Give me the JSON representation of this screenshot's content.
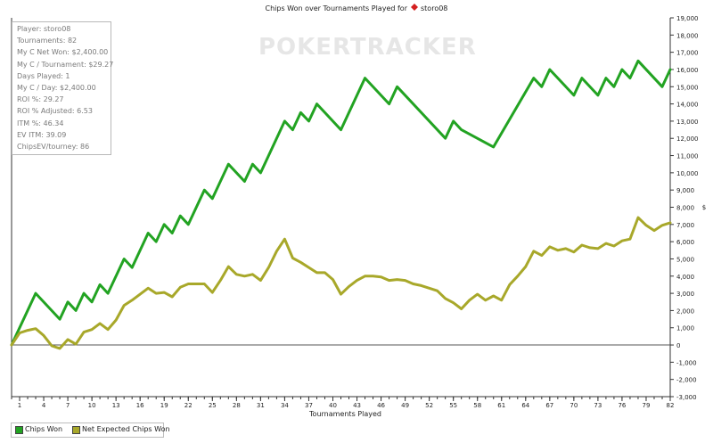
{
  "chart_data": {
    "type": "line",
    "title": "Chips Won over Tournaments Played for",
    "player_name": "storo08",
    "xlabel": "Tournaments Played",
    "ylabel": "$",
    "xlim": [
      0,
      82
    ],
    "ylim": [
      -3000,
      19000
    ],
    "x_ticks": [
      1,
      4,
      7,
      10,
      13,
      16,
      19,
      22,
      25,
      28,
      31,
      34,
      37,
      40,
      43,
      46,
      49,
      52,
      55,
      58,
      61,
      64,
      67,
      70,
      73,
      76,
      79,
      82
    ],
    "y_ticks": [
      -3000,
      -2000,
      -1000,
      0,
      1000,
      2000,
      3000,
      4000,
      5000,
      6000,
      7000,
      8000,
      9000,
      10000,
      11000,
      12000,
      13000,
      14000,
      15000,
      16000,
      17000,
      18000,
      19000
    ],
    "y_tick_labels": [
      "-3,000",
      "-2,000",
      "-1,000",
      "0",
      "1,000",
      "2,000",
      "3,000",
      "4,000",
      "5,000",
      "6,000",
      "7,000",
      "8,000",
      "9,000",
      "10,000",
      "11,000",
      "12,000",
      "13,000",
      "14,000",
      "15,000",
      "16,000",
      "17,000",
      "18,000",
      "19,000"
    ],
    "grid": false,
    "legend_position": "bottom-left",
    "series": [
      {
        "name": "Chips Won",
        "color": "#22a322",
        "x": [
          0,
          3,
          6,
          7,
          8,
          9,
          10,
          11,
          12,
          14,
          15,
          17,
          18,
          19,
          20,
          21,
          22,
          24,
          25,
          27,
          29,
          30,
          31,
          34,
          35,
          36,
          37,
          38,
          41,
          44,
          47,
          48,
          54,
          55,
          56,
          60,
          65,
          66,
          67,
          70,
          71,
          73,
          74,
          75,
          76,
          77,
          78,
          81,
          82
        ],
        "y": [
          0,
          3000,
          1500,
          2500,
          2000,
          3000,
          2500,
          3500,
          3000,
          5000,
          4500,
          6500,
          6000,
          7000,
          6500,
          7500,
          7000,
          9000,
          8500,
          10500,
          9500,
          10500,
          10000,
          13000,
          12500,
          13500,
          13000,
          14000,
          12500,
          15500,
          14000,
          15000,
          12000,
          13000,
          12500,
          11500,
          15500,
          15000,
          16000,
          14500,
          15500,
          14500,
          15500,
          15000,
          16000,
          15500,
          16500,
          15000,
          16000
        ]
      },
      {
        "name": "Net Expected Chips Won",
        "color": "#a8a82a",
        "x": [
          0,
          1,
          2,
          3,
          4,
          5,
          6,
          7,
          8,
          9,
          10,
          11,
          12,
          13,
          14,
          15,
          16,
          17,
          18,
          19,
          20,
          21,
          22,
          23,
          24,
          25,
          26,
          27,
          28,
          29,
          30,
          31,
          32,
          33,
          34,
          35,
          36,
          37,
          38,
          39,
          40,
          41,
          42,
          43,
          44,
          45,
          46,
          47,
          48,
          49,
          50,
          51,
          52,
          53,
          54,
          55,
          56,
          57,
          58,
          59,
          60,
          61,
          62,
          63,
          64,
          65,
          66,
          67,
          68,
          69,
          70,
          71,
          72,
          73,
          74,
          75,
          76,
          77,
          78,
          79,
          80,
          81,
          82
        ],
        "y": [
          0,
          700,
          850,
          950,
          550,
          -50,
          -200,
          320,
          50,
          750,
          900,
          1250,
          900,
          1450,
          2300,
          2600,
          2950,
          3300,
          3000,
          3050,
          2800,
          3350,
          3550,
          3550,
          3550,
          3050,
          3750,
          4550,
          4100,
          4000,
          4100,
          3750,
          4500,
          5450,
          6150,
          5050,
          4800,
          4500,
          4200,
          4200,
          3800,
          2950,
          3400,
          3750,
          4000,
          4000,
          3950,
          3750,
          3800,
          3750,
          3550,
          3450,
          3300,
          3150,
          2700,
          2450,
          2100,
          2600,
          2950,
          2600,
          2850,
          2600,
          3500,
          4000,
          4550,
          5450,
          5200,
          5700,
          5500,
          5600,
          5400,
          5800,
          5650,
          5600,
          5900,
          5750,
          6050,
          6150,
          7400,
          6950,
          6650,
          6950,
          7100
        ]
      }
    ]
  },
  "stats_box": {
    "lines": [
      "Player: storo08",
      "Tournaments: 82",
      "My C Net Won: $2,400.00",
      "My C / Tournament: $29.27",
      "Days Played: 1",
      "My C / Day: $2,400.00",
      "ROI %: 29.27",
      "ROI % Adjusted: 6.53",
      "ITM %: 46.34",
      "EV ITM: 39.09",
      "ChipsEV/tourney: 86"
    ]
  },
  "watermark": "POKERTRACKER",
  "colors": {
    "axis": "#333333",
    "zero_line": "#555555",
    "tick_text": "#222222",
    "suit_icon": "#d42020"
  },
  "icons": {
    "title_icon": "red-diamond-suit-icon"
  }
}
